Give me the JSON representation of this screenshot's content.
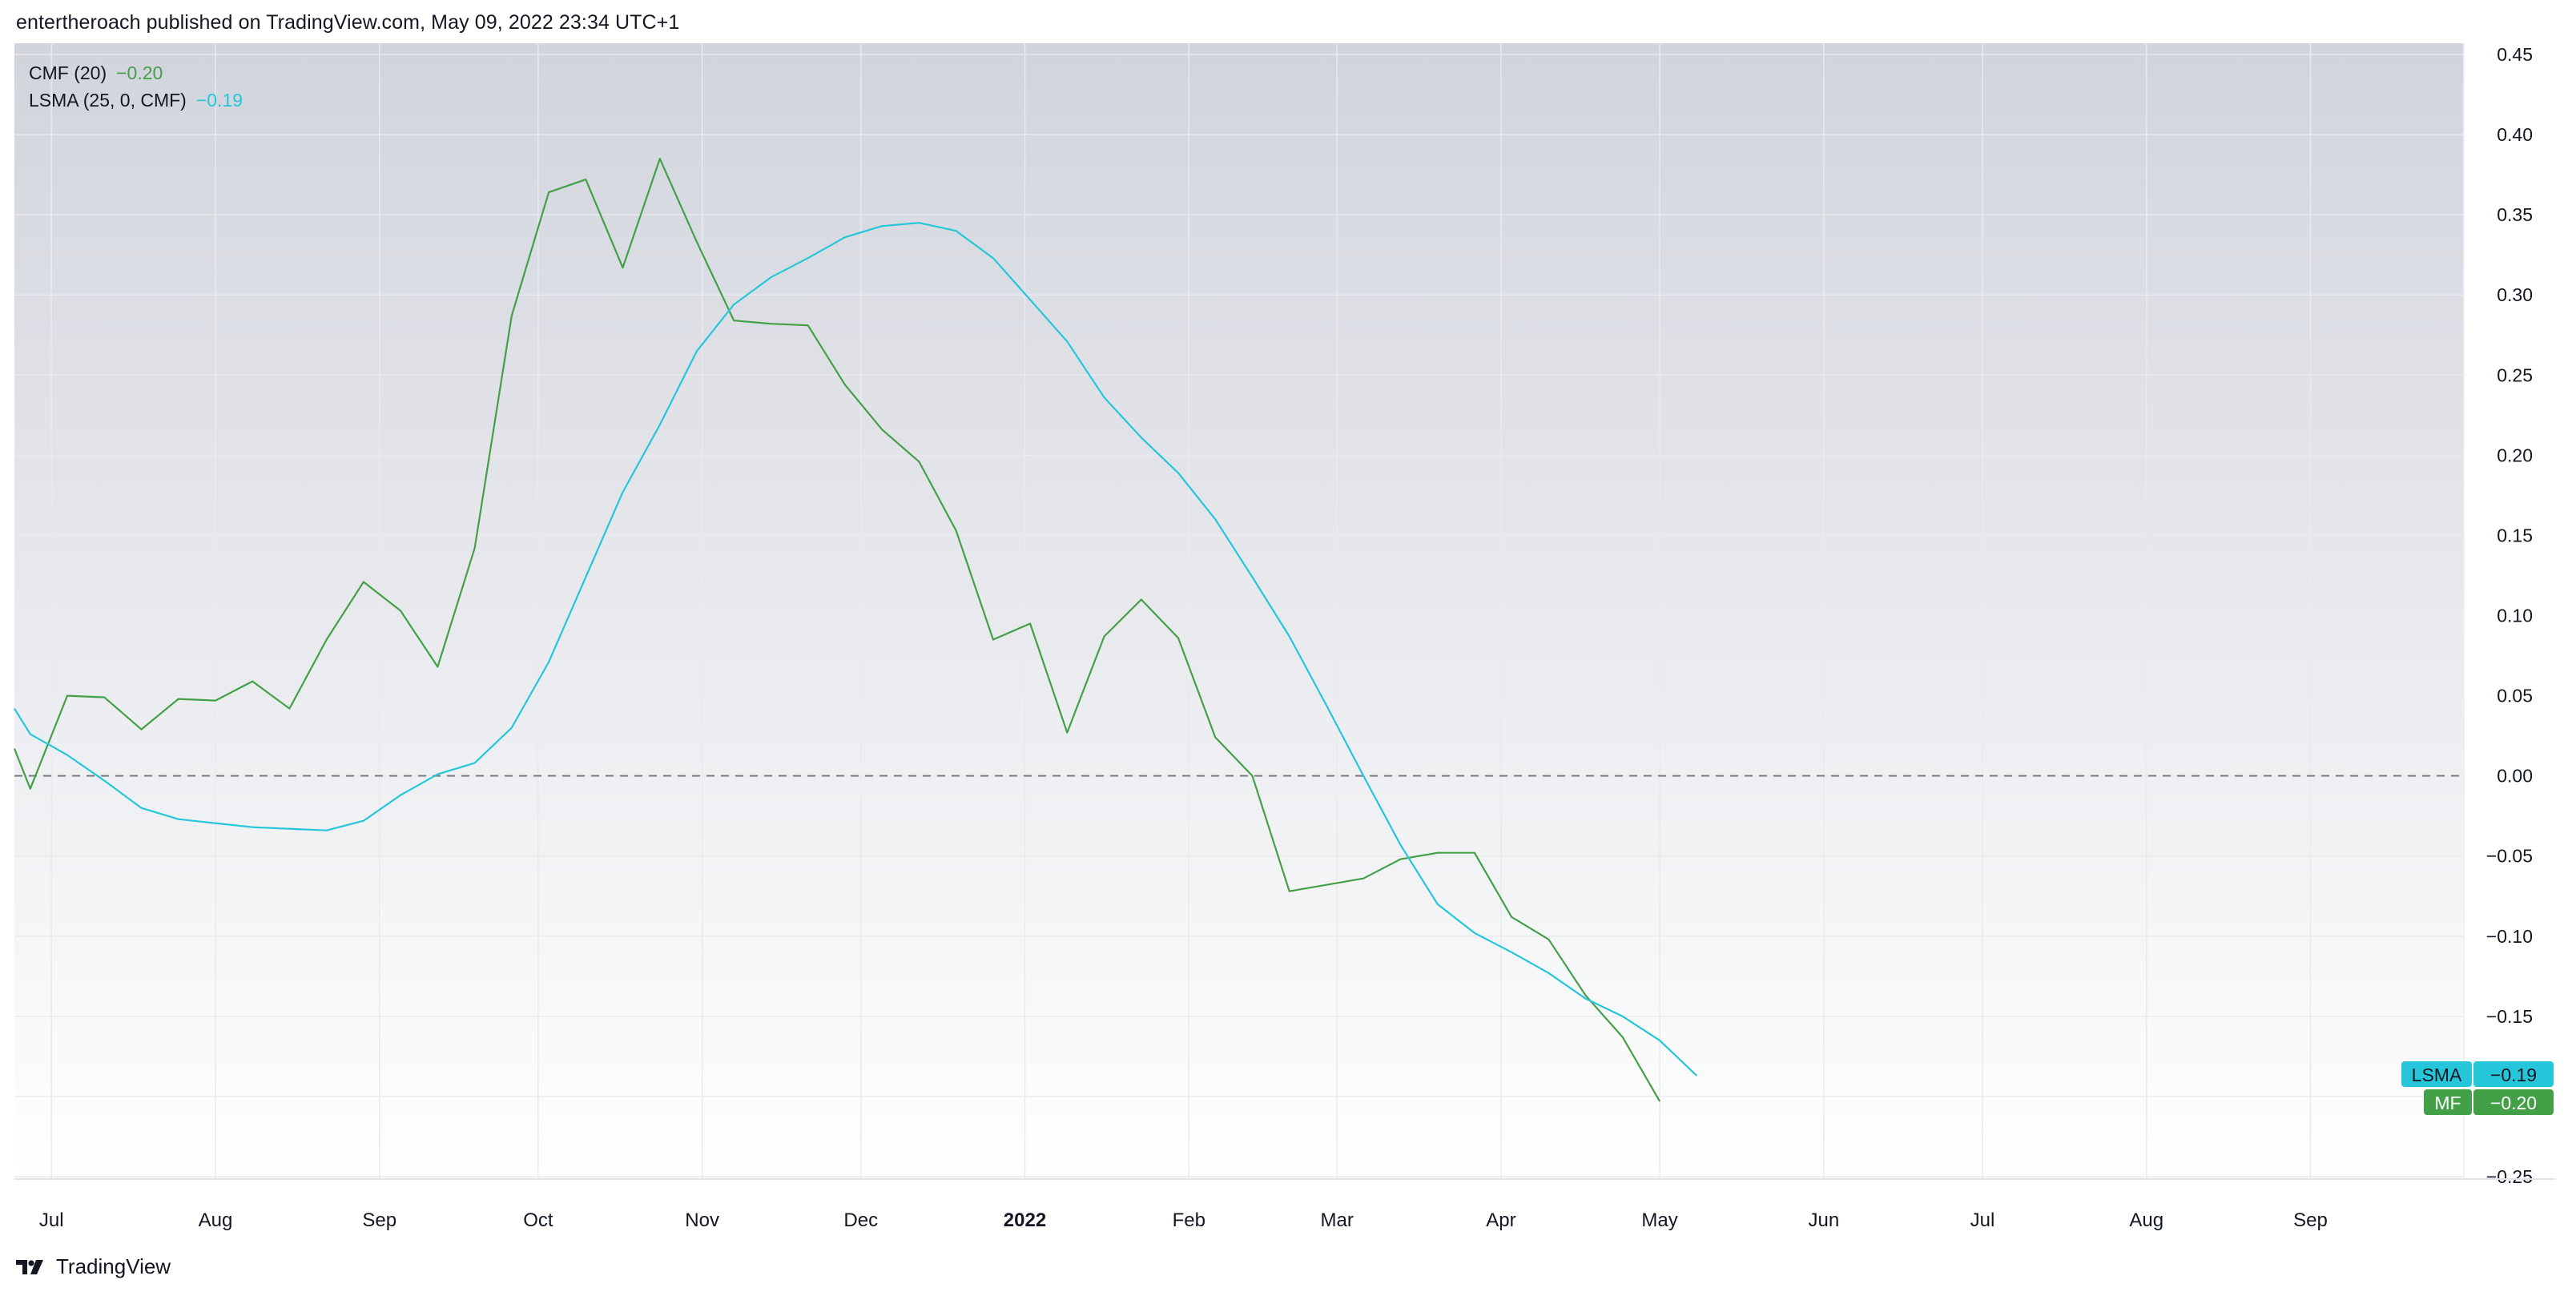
{
  "header": {
    "published": "entertheroach published on TradingView.com, May 09, 2022 23:34 UTC+1"
  },
  "legend": {
    "cmf_name": "CMF (20)",
    "cmf_value": "−0.20",
    "lsma_name": "LSMA (25, 0, CMF)",
    "lsma_value": "−0.19"
  },
  "badges": {
    "lsma_label": "LSMA",
    "lsma_value": "−0.19",
    "mf_label": "MF",
    "mf_value": "−0.20"
  },
  "footer": {
    "brand": "TradingView"
  },
  "colors": {
    "cmf": "#43a047",
    "lsma": "#26c6da",
    "zero_line": "#787b86",
    "grid": "#e9eaee",
    "bg_top": "#d1d4dc",
    "bg_bottom": "#ffffff"
  },
  "chart_data": {
    "type": "line",
    "title": "",
    "xlabel": "",
    "ylabel": "",
    "ylim": [
      -0.25,
      0.45
    ],
    "y_ticks": [
      "0.45",
      "0.40",
      "0.35",
      "0.30",
      "0.25",
      "0.20",
      "0.15",
      "0.10",
      "0.05",
      "0.00",
      "−0.05",
      "−0.10",
      "−0.15",
      "−0.20",
      "−0.25"
    ],
    "y_tick_values": [
      0.45,
      0.4,
      0.35,
      0.3,
      0.25,
      0.2,
      0.15,
      0.1,
      0.05,
      0.0,
      -0.05,
      -0.1,
      -0.15,
      -0.2,
      -0.25
    ],
    "x_range": [
      "2021-06-24",
      "2022-09-30"
    ],
    "x_ticks": [
      {
        "label": "Jul",
        "date": "2021-07-01",
        "bold": false
      },
      {
        "label": "Aug",
        "date": "2021-08-01",
        "bold": false
      },
      {
        "label": "Sep",
        "date": "2021-09-01",
        "bold": false
      },
      {
        "label": "Oct",
        "date": "2021-10-01",
        "bold": false
      },
      {
        "label": "Nov",
        "date": "2021-11-01",
        "bold": false
      },
      {
        "label": "Dec",
        "date": "2021-12-01",
        "bold": false
      },
      {
        "label": "2022",
        "date": "2022-01-01",
        "bold": true
      },
      {
        "label": "Feb",
        "date": "2022-02-01",
        "bold": false
      },
      {
        "label": "Mar",
        "date": "2022-03-01",
        "bold": false
      },
      {
        "label": "Apr",
        "date": "2022-04-01",
        "bold": false
      },
      {
        "label": "May",
        "date": "2022-05-01",
        "bold": false
      },
      {
        "label": "Jun",
        "date": "2022-06-01",
        "bold": false
      },
      {
        "label": "Jul",
        "date": "2022-07-01",
        "bold": false
      },
      {
        "label": "Aug",
        "date": "2022-08-01",
        "bold": false
      },
      {
        "label": "Sep",
        "date": "2022-09-01",
        "bold": false
      }
    ],
    "zero_line": 0,
    "series": [
      {
        "name": "CMF (20)",
        "color": "#43a047",
        "points": [
          [
            "2021-06-24",
            0.017
          ],
          [
            "2021-06-27",
            -0.008
          ],
          [
            "2021-07-04",
            0.05
          ],
          [
            "2021-07-11",
            0.049
          ],
          [
            "2021-07-18",
            0.029
          ],
          [
            "2021-07-25",
            0.048
          ],
          [
            "2021-08-01",
            0.047
          ],
          [
            "2021-08-08",
            0.059
          ],
          [
            "2021-08-15",
            0.042
          ],
          [
            "2021-08-22",
            0.085
          ],
          [
            "2021-08-29",
            0.121
          ],
          [
            "2021-09-05",
            0.103
          ],
          [
            "2021-09-12",
            0.068
          ],
          [
            "2021-09-19",
            0.142
          ],
          [
            "2021-09-26",
            0.287
          ],
          [
            "2021-10-03",
            0.364
          ],
          [
            "2021-10-10",
            0.372
          ],
          [
            "2021-10-17",
            0.317
          ],
          [
            "2021-10-24",
            0.385
          ],
          [
            "2021-10-31",
            0.333
          ],
          [
            "2021-11-07",
            0.284
          ],
          [
            "2021-11-14",
            0.282
          ],
          [
            "2021-11-21",
            0.281
          ],
          [
            "2021-11-28",
            0.244
          ],
          [
            "2021-12-05",
            0.216
          ],
          [
            "2021-12-12",
            0.196
          ],
          [
            "2021-12-19",
            0.153
          ],
          [
            "2021-12-26",
            0.085
          ],
          [
            "2022-01-02",
            0.095
          ],
          [
            "2022-01-09",
            0.027
          ],
          [
            "2022-01-16",
            0.087
          ],
          [
            "2022-01-23",
            0.11
          ],
          [
            "2022-01-30",
            0.086
          ],
          [
            "2022-02-06",
            0.024
          ],
          [
            "2022-02-13",
            0.0
          ],
          [
            "2022-02-20",
            -0.072
          ],
          [
            "2022-02-27",
            -0.068
          ],
          [
            "2022-03-06",
            -0.064
          ],
          [
            "2022-03-13",
            -0.052
          ],
          [
            "2022-03-20",
            -0.048
          ],
          [
            "2022-03-27",
            -0.048
          ],
          [
            "2022-04-03",
            -0.088
          ],
          [
            "2022-04-10",
            -0.102
          ],
          [
            "2022-04-17",
            -0.137
          ],
          [
            "2022-04-24",
            -0.163
          ],
          [
            "2022-05-01",
            -0.203
          ]
        ]
      },
      {
        "name": "LSMA (25, 0, CMF)",
        "color": "#26c6da",
        "points": [
          [
            "2021-06-24",
            0.042
          ],
          [
            "2021-06-27",
            0.026
          ],
          [
            "2021-07-04",
            0.013
          ],
          [
            "2021-07-11",
            -0.003
          ],
          [
            "2021-07-18",
            -0.02
          ],
          [
            "2021-07-25",
            -0.027
          ],
          [
            "2021-08-08",
            -0.032
          ],
          [
            "2021-08-22",
            -0.034
          ],
          [
            "2021-08-29",
            -0.028
          ],
          [
            "2021-09-05",
            -0.012
          ],
          [
            "2021-09-12",
            0.001
          ],
          [
            "2021-09-19",
            0.008
          ],
          [
            "2021-09-26",
            0.03
          ],
          [
            "2021-10-03",
            0.071
          ],
          [
            "2021-10-10",
            0.124
          ],
          [
            "2021-10-17",
            0.177
          ],
          [
            "2021-10-24",
            0.219
          ],
          [
            "2021-10-31",
            0.265
          ],
          [
            "2021-11-07",
            0.294
          ],
          [
            "2021-11-14",
            0.311
          ],
          [
            "2021-11-21",
            0.323
          ],
          [
            "2021-11-28",
            0.336
          ],
          [
            "2021-12-05",
            0.343
          ],
          [
            "2021-12-12",
            0.345
          ],
          [
            "2021-12-19",
            0.34
          ],
          [
            "2021-12-26",
            0.323
          ],
          [
            "2022-01-02",
            0.297
          ],
          [
            "2022-01-09",
            0.271
          ],
          [
            "2022-01-16",
            0.236
          ],
          [
            "2022-01-23",
            0.211
          ],
          [
            "2022-01-30",
            0.189
          ],
          [
            "2022-02-06",
            0.16
          ],
          [
            "2022-02-13",
            0.124
          ],
          [
            "2022-02-20",
            0.087
          ],
          [
            "2022-02-27",
            0.044
          ],
          [
            "2022-03-06",
            0.0
          ],
          [
            "2022-03-13",
            -0.043
          ],
          [
            "2022-03-20",
            -0.08
          ],
          [
            "2022-03-27",
            -0.098
          ],
          [
            "2022-04-03",
            -0.11
          ],
          [
            "2022-04-10",
            -0.123
          ],
          [
            "2022-04-17",
            -0.139
          ],
          [
            "2022-04-24",
            -0.15
          ],
          [
            "2022-05-01",
            -0.165
          ],
          [
            "2022-05-08",
            -0.187
          ]
        ]
      }
    ]
  }
}
